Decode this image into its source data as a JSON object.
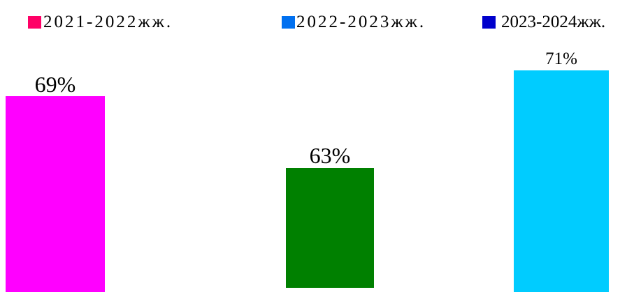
{
  "chart_data": {
    "type": "bar",
    "grid": false,
    "legend_position": "top",
    "series": [
      {
        "name": "2021-2022жж.",
        "legend_color": "#FF0066",
        "color": "#FF00FF",
        "values": [
          69
        ],
        "data_labels": [
          "69%"
        ]
      },
      {
        "name": "2022-2023жж.",
        "legend_color": "#0070F0",
        "color": "#008000",
        "values": [
          63
        ],
        "data_labels": [
          "63%"
        ]
      },
      {
        "name": "2023-2024жж.",
        "legend_color": "#0000CC",
        "color": "#00CCFF",
        "values": [
          71
        ],
        "data_labels": [
          "71%"
        ]
      }
    ]
  }
}
